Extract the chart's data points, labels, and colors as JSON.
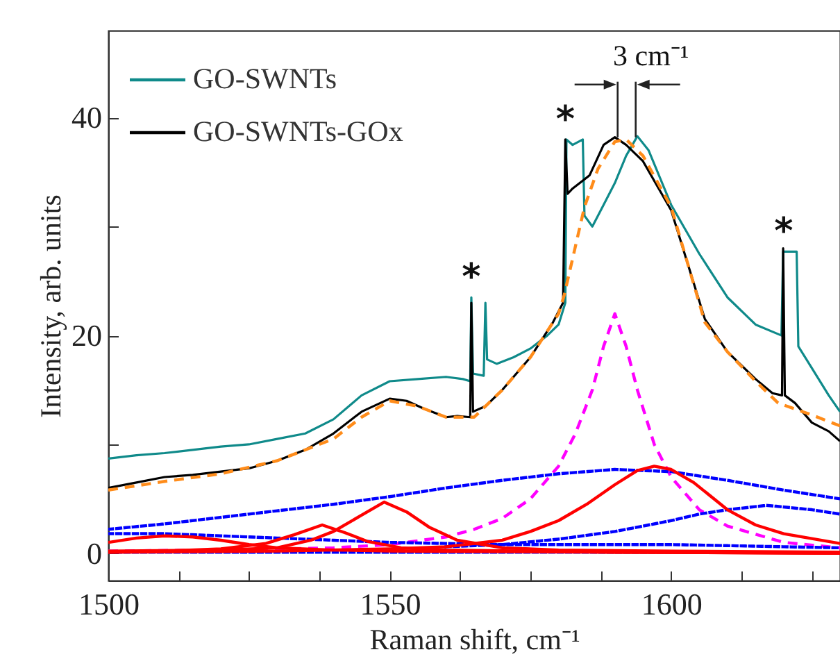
{
  "chart_data": {
    "type": "line",
    "xlabel": "Raman shift, cm⁻¹",
    "ylabel": "Intensity, arb. units",
    "xlim": [
      1500,
      1630
    ],
    "ylim": [
      -2.5,
      48
    ],
    "xticks": [
      1500,
      {
        "value": 1512.5,
        "label": null
      },
      {
        "value": 1525,
        "label": null
      },
      {
        "value": 1537.5,
        "label": null
      },
      1550,
      {
        "value": 1562.5,
        "label": null
      },
      {
        "value": 1575,
        "label": null
      },
      {
        "value": 1587.5,
        "label": null
      },
      1600,
      {
        "value": 1612.5,
        "label": null
      },
      {
        "value": 1625,
        "label": null
      }
    ],
    "yticks": [
      0,
      {
        "value": 10,
        "label": null
      },
      20,
      {
        "value": 30,
        "label": null
      },
      40
    ],
    "grid": false,
    "legend": "top left",
    "marker": "none",
    "series": [
      {
        "name": "GO-SWNTs",
        "color": "#0f8a8a",
        "line_style": "solid",
        "x": [
          1500,
          1505,
          1510,
          1515,
          1520,
          1525,
          1530,
          1535,
          1540,
          1545,
          1550,
          1555,
          1560,
          1563,
          1564.3,
          1564.5,
          1564.8,
          1566.7,
          1567,
          1567.3,
          1569,
          1572,
          1575,
          1578,
          1580,
          1581.2,
          1581.4,
          1582.5,
          1584.3,
          1584.6,
          1586,
          1588,
          1590,
          1592,
          1594,
          1596,
          1600,
          1605,
          1610,
          1615,
          1619.6,
          1619.9,
          1622.3,
          1622.6,
          1625,
          1628,
          1630
        ],
        "values": [
          8.7,
          9,
          9.2,
          9.5,
          9.8,
          10,
          10.5,
          11,
          12.3,
          14.5,
          15.8,
          16,
          16.2,
          16,
          15.8,
          23.5,
          16.5,
          16.3,
          23,
          17.8,
          17.4,
          18,
          18.8,
          20,
          21,
          23,
          38,
          37.5,
          38,
          31,
          30,
          32,
          34,
          36.5,
          38.3,
          37,
          32,
          27.5,
          23.5,
          21,
          20,
          27.7,
          27.7,
          19,
          17,
          14.5,
          13
        ]
      },
      {
        "name": "GO-SWNTs-GOx",
        "color": "#000000",
        "line_style": "solid",
        "x": [
          1500,
          1505,
          1510,
          1515,
          1520,
          1525,
          1530,
          1535,
          1540,
          1545,
          1550,
          1553,
          1556,
          1560,
          1562,
          1564.3,
          1564.5,
          1564.8,
          1567,
          1570,
          1575,
          1579,
          1580.8,
          1581.2,
          1581.6,
          1582.5,
          1585.5,
          1588,
          1590,
          1592,
          1595,
          1600,
          1603,
          1606,
          1610,
          1615,
          1618,
          1619.7,
          1619.9,
          1620.2,
          1622,
          1625,
          1628,
          1630
        ],
        "values": [
          6,
          6.5,
          7,
          7.2,
          7.5,
          7.8,
          8.5,
          9.5,
          11,
          13,
          14.2,
          14,
          13.3,
          12.5,
          12.6,
          12.5,
          23,
          13,
          13.5,
          15,
          18,
          21.2,
          23,
          38,
          33,
          33.5,
          34.7,
          37.5,
          38.2,
          37.5,
          36,
          31.5,
          26.5,
          21.5,
          18.5,
          16,
          14.7,
          14.5,
          28,
          14.5,
          13.8,
          12,
          11.2,
          10.3
        ]
      },
      {
        "color": "#ff8c1a",
        "line_style": "dashed",
        "x": [
          1500,
          1510,
          1520,
          1530,
          1540,
          1545,
          1550,
          1555,
          1560,
          1565,
          1570,
          1575,
          1580,
          1581,
          1584.6,
          1587,
          1590,
          1592,
          1595,
          1600,
          1606,
          1610,
          1615,
          1619,
          1625,
          1630
        ],
        "values": [
          5.8,
          6.6,
          7.3,
          8.5,
          10.5,
          12.5,
          14,
          13.5,
          12.5,
          12.5,
          15,
          18,
          22,
          23.7,
          31.8,
          35.3,
          37.8,
          38,
          36.5,
          31.8,
          21.2,
          18.5,
          15.8,
          13.8,
          12.7,
          11.7
        ]
      },
      {
        "color": "#ff00ff",
        "line_style": "dashed",
        "x": [
          1500,
          1520,
          1540,
          1550,
          1560,
          1565,
          1570,
          1575,
          1580,
          1583,
          1586,
          1588,
          1590,
          1592,
          1594,
          1597,
          1600,
          1605,
          1610,
          1620,
          1630
        ],
        "values": [
          0.2,
          0.3,
          0.5,
          0.8,
          1.5,
          2.2,
          3.2,
          5,
          8,
          11,
          15,
          19,
          22,
          19,
          15,
          10,
          7,
          4,
          2.5,
          1,
          0.5
        ]
      },
      {
        "color": "#0000ff",
        "line_style": "dotted",
        "x": [
          1500,
          1510,
          1520,
          1530,
          1540,
          1550,
          1560,
          1570,
          1580,
          1590,
          1600,
          1610,
          1620,
          1630
        ],
        "values": [
          2.2,
          2.7,
          3.3,
          3.9,
          4.5,
          5.2,
          6,
          6.7,
          7.3,
          7.7,
          7.5,
          6.7,
          5.8,
          5
        ]
      },
      {
        "color": "#0000ff",
        "line_style": "dotted",
        "x": [
          1500,
          1510,
          1520,
          1530,
          1540,
          1550,
          1560,
          1570,
          1580,
          1590,
          1600,
          1610,
          1620,
          1630
        ],
        "values": [
          1.8,
          1.8,
          1.6,
          1.4,
          1.2,
          1,
          0.9,
          0.8,
          0.8,
          0.8,
          0.8,
          0.7,
          0.6,
          0.5
        ]
      },
      {
        "color": "#0000ff",
        "line_style": "dotted",
        "x": [
          1560,
          1570,
          1580,
          1590,
          1600,
          1605,
          1610,
          1617,
          1625,
          1630
        ],
        "values": [
          0.6,
          0.8,
          1.3,
          2,
          3,
          3.6,
          4,
          4.4,
          4,
          3.6
        ]
      },
      {
        "color": "#0000ff",
        "line_style": "dotted",
        "x": [
          1500,
          1530,
          1560,
          1590,
          1630
        ],
        "values": [
          0.1,
          0.1,
          0.1,
          0.1,
          0.1
        ]
      },
      {
        "color": "#ff0000",
        "line_style": "solid",
        "x": [
          1500,
          1505,
          1510,
          1515,
          1520,
          1525,
          1530,
          1540,
          1550,
          1590,
          1630
        ],
        "values": [
          1,
          1.4,
          1.6,
          1.5,
          1.2,
          0.8,
          0.5,
          0.3,
          0.2,
          0.1,
          0
        ]
      },
      {
        "color": "#ff0000",
        "line_style": "solid",
        "x": [
          1500,
          1510,
          1520,
          1528,
          1533,
          1538,
          1542,
          1546,
          1552,
          1560,
          1590,
          1630
        ],
        "values": [
          0.1,
          0.2,
          0.4,
          0.9,
          1.7,
          2.6,
          1.9,
          1.1,
          0.5,
          0.3,
          0.1,
          0
        ]
      },
      {
        "color": "#ff0000",
        "line_style": "solid",
        "x": [
          1500,
          1520,
          1530,
          1536,
          1540,
          1545,
          1549,
          1553,
          1557,
          1562,
          1570,
          1580,
          1600,
          1630
        ],
        "values": [
          0.2,
          0.3,
          0.5,
          1.2,
          2,
          3.5,
          4.7,
          3.8,
          2.4,
          1.2,
          0.5,
          0.3,
          0.2,
          0.1
        ]
      },
      {
        "color": "#ff0000",
        "line_style": "solid",
        "x": [
          1500,
          1530,
          1550,
          1560,
          1570,
          1575,
          1580,
          1585,
          1590,
          1594,
          1597,
          1600,
          1604,
          1610,
          1615,
          1620,
          1630
        ],
        "values": [
          0.1,
          0.2,
          0.4,
          0.6,
          1.2,
          2,
          3,
          4.5,
          6.3,
          7.6,
          8,
          7.7,
          6.5,
          4,
          2.6,
          1.8,
          0.9
        ]
      }
    ],
    "annotations": [
      {
        "text": "3 cm⁻¹",
        "x": 1590,
        "y": 38.2
      },
      {
        "text": "*",
        "x": 1564.5,
        "y": 23.5
      },
      {
        "text": "*",
        "x": 1581.2,
        "y": 38
      },
      {
        "text": "*",
        "x": 1620,
        "y": 27.7
      }
    ]
  }
}
